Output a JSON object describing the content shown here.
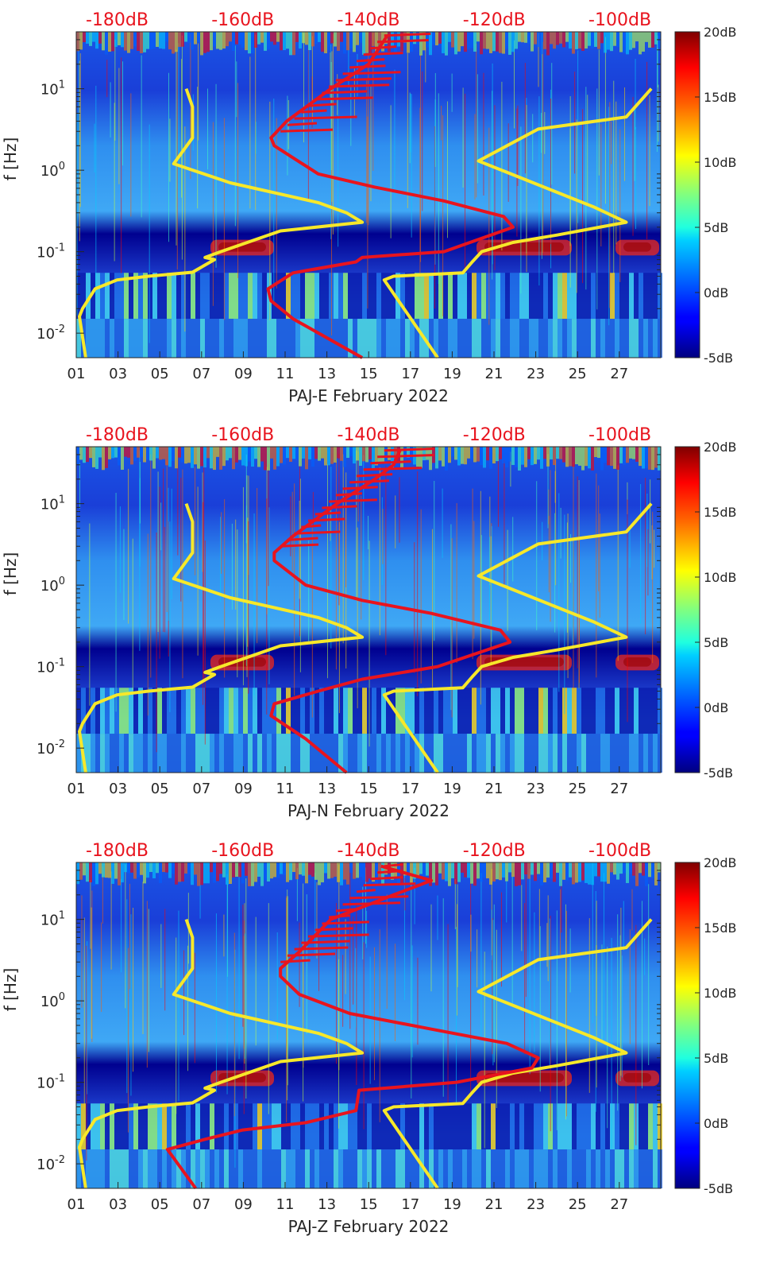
{
  "chart_data": [
    {
      "type": "heatmap",
      "station": "PAJ-E",
      "xlabel": "PAJ-E February 2022",
      "ylabel": "f [Hz]",
      "x_ticks": [
        "01",
        "03",
        "05",
        "07",
        "09",
        "11",
        "13",
        "15",
        "17",
        "19",
        "21",
        "23",
        "25",
        "27"
      ],
      "y_ticks": [
        "10^-2",
        "10^-1",
        "10^0",
        "10^1"
      ],
      "y_scale": "log",
      "ylim": [
        0.005,
        50
      ],
      "top_axis_ticks": [
        "-180dB",
        "-160dB",
        "-140dB",
        "-120dB",
        "-100dB"
      ],
      "colorbar": {
        "ticks": [
          "20dB",
          "15dB",
          "10dB",
          "5dB",
          "0dB",
          "-5dB"
        ],
        "range": [
          -5,
          20
        ],
        "colormap": "jet"
      },
      "series": [
        {
          "name": "",
          "color": "#f7e82a",
          "points": [
            [
              -185,
              0.005
            ],
            [
              -186,
              0.016
            ],
            [
              -185.5,
              0.02
            ],
            [
              -183.5,
              0.035
            ],
            [
              -180,
              0.045
            ],
            [
              -175,
              0.05
            ],
            [
              -168,
              0.056
            ],
            [
              -164.5,
              0.08
            ],
            [
              -166,
              0.085
            ],
            [
              -163.5,
              0.1
            ],
            [
              -154,
              0.18
            ],
            [
              -141,
              0.23
            ],
            [
              -143.5,
              0.3
            ],
            [
              -148,
              0.4
            ],
            [
              -162,
              0.7
            ],
            [
              -171,
              1.2
            ],
            [
              -168,
              2.5
            ],
            [
              -168,
              6
            ],
            [
              -169,
              10
            ]
          ]
        },
        {
          "name": "",
          "color": "#f7e82a",
          "points": [
            [
              -129,
              0.005
            ],
            [
              -137.5,
              0.045
            ],
            [
              -136,
              0.05
            ],
            [
              -125,
              0.055
            ],
            [
              -123.5,
              0.075
            ],
            [
              -122,
              0.1
            ],
            [
              -117,
              0.13
            ],
            [
              -110,
              0.16
            ],
            [
              -99,
              0.23
            ],
            [
              -104,
              0.35
            ],
            [
              -122.5,
              1.3
            ],
            [
              -113,
              3.2
            ],
            [
              -99,
              4.5
            ],
            [
              -95,
              10
            ]
          ]
        },
        {
          "name": "",
          "color": "#e8141e",
          "points": [
            [
              -141,
              0.005
            ],
            [
              -152,
              0.015
            ],
            [
              -155.5,
              0.025
            ],
            [
              -156,
              0.035
            ],
            [
              -152,
              0.055
            ],
            [
              -142,
              0.075
            ],
            [
              -141,
              0.085
            ],
            [
              -128,
              0.1
            ],
            [
              -117,
              0.2
            ],
            [
              -118.5,
              0.27
            ],
            [
              -128,
              0.42
            ],
            [
              -139,
              0.62
            ],
            [
              -148,
              0.9
            ],
            [
              -155,
              2
            ],
            [
              -155.5,
              2.5
            ],
            [
              -153,
              4
            ],
            [
              -146,
              10
            ],
            [
              -140,
              20
            ],
            [
              -138.5,
              30
            ],
            [
              -137,
              45
            ]
          ]
        }
      ]
    },
    {
      "type": "heatmap",
      "station": "PAJ-N",
      "xlabel": "PAJ-N February 2022",
      "ylabel": "f [Hz]",
      "x_ticks": [
        "01",
        "03",
        "05",
        "07",
        "09",
        "11",
        "13",
        "15",
        "17",
        "19",
        "21",
        "23",
        "25",
        "27"
      ],
      "y_ticks": [
        "10^-2",
        "10^-1",
        "10^0",
        "10^1"
      ],
      "y_scale": "log",
      "ylim": [
        0.005,
        50
      ],
      "top_axis_ticks": [
        "-180dB",
        "-160dB",
        "-140dB",
        "-120dB",
        "-100dB"
      ],
      "colorbar": {
        "ticks": [
          "20dB",
          "15dB",
          "10dB",
          "5dB",
          "0dB",
          "-5dB"
        ],
        "range": [
          -5,
          20
        ],
        "colormap": "jet"
      },
      "series": [
        {
          "name": "",
          "color": "#f7e82a",
          "points": [
            [
              -185,
              0.005
            ],
            [
              -186,
              0.016
            ],
            [
              -185.5,
              0.02
            ],
            [
              -183.5,
              0.035
            ],
            [
              -180,
              0.045
            ],
            [
              -175,
              0.05
            ],
            [
              -168,
              0.056
            ],
            [
              -164.5,
              0.08
            ],
            [
              -166,
              0.085
            ],
            [
              -163.5,
              0.1
            ],
            [
              -154,
              0.18
            ],
            [
              -141,
              0.23
            ],
            [
              -143.5,
              0.3
            ],
            [
              -148,
              0.4
            ],
            [
              -162,
              0.7
            ],
            [
              -171,
              1.2
            ],
            [
              -168,
              2.5
            ],
            [
              -168,
              6
            ],
            [
              -169,
              10
            ]
          ]
        },
        {
          "name": "",
          "color": "#f7e82a",
          "points": [
            [
              -129,
              0.005
            ],
            [
              -137.5,
              0.045
            ],
            [
              -136,
              0.05
            ],
            [
              -125,
              0.055
            ],
            [
              -123.5,
              0.075
            ],
            [
              -122,
              0.1
            ],
            [
              -117,
              0.13
            ],
            [
              -110,
              0.16
            ],
            [
              -99,
              0.23
            ],
            [
              -104,
              0.35
            ],
            [
              -122.5,
              1.3
            ],
            [
              -113,
              3.2
            ],
            [
              -99,
              4.5
            ],
            [
              -95,
              10
            ]
          ]
        },
        {
          "name": "",
          "color": "#e8141e",
          "points": [
            [
              -143.5,
              0.005
            ],
            [
              -150,
              0.013
            ],
            [
              -155.5,
              0.025
            ],
            [
              -155,
              0.035
            ],
            [
              -148,
              0.05
            ],
            [
              -141,
              0.07
            ],
            [
              -129,
              0.1
            ],
            [
              -117.5,
              0.2
            ],
            [
              -119,
              0.28
            ],
            [
              -130,
              0.45
            ],
            [
              -141,
              0.65
            ],
            [
              -150,
              1
            ],
            [
              -155,
              2
            ],
            [
              -155,
              2.5
            ],
            [
              -152,
              4
            ],
            [
              -145,
              10
            ],
            [
              -139,
              20
            ],
            [
              -136,
              30
            ],
            [
              -135,
              45
            ]
          ]
        }
      ]
    },
    {
      "type": "heatmap",
      "station": "PAJ-Z",
      "xlabel": "PAJ-Z February 2022",
      "ylabel": "f [Hz]",
      "x_ticks": [
        "01",
        "03",
        "05",
        "07",
        "09",
        "11",
        "13",
        "15",
        "17",
        "19",
        "21",
        "23",
        "25",
        "27"
      ],
      "y_ticks": [
        "10^-2",
        "10^-1",
        "10^0",
        "10^1"
      ],
      "y_scale": "log",
      "ylim": [
        0.005,
        50
      ],
      "top_axis_ticks": [
        "-180dB",
        "-160dB",
        "-140dB",
        "-120dB",
        "-100dB"
      ],
      "colorbar": {
        "ticks": [
          "20dB",
          "15dB",
          "10dB",
          "5dB",
          "0dB",
          "-5dB"
        ],
        "range": [
          -5,
          20
        ],
        "colormap": "jet"
      },
      "series": [
        {
          "name": "",
          "color": "#f7e82a",
          "points": [
            [
              -185,
              0.005
            ],
            [
              -186,
              0.016
            ],
            [
              -185.5,
              0.02
            ],
            [
              -183.5,
              0.035
            ],
            [
              -180,
              0.045
            ],
            [
              -175,
              0.05
            ],
            [
              -168,
              0.056
            ],
            [
              -164.5,
              0.08
            ],
            [
              -166,
              0.085
            ],
            [
              -163.5,
              0.1
            ],
            [
              -154,
              0.18
            ],
            [
              -141,
              0.23
            ],
            [
              -143.5,
              0.3
            ],
            [
              -148,
              0.4
            ],
            [
              -162,
              0.7
            ],
            [
              -171,
              1.2
            ],
            [
              -168,
              2.5
            ],
            [
              -168,
              6
            ],
            [
              -169,
              10
            ]
          ]
        },
        {
          "name": "",
          "color": "#f7e82a",
          "points": [
            [
              -129,
              0.005
            ],
            [
              -137.5,
              0.045
            ],
            [
              -136,
              0.05
            ],
            [
              -125,
              0.055
            ],
            [
              -123.5,
              0.075
            ],
            [
              -122,
              0.1
            ],
            [
              -117,
              0.13
            ],
            [
              -110,
              0.16
            ],
            [
              -99,
              0.23
            ],
            [
              -104,
              0.35
            ],
            [
              -122.5,
              1.3
            ],
            [
              -113,
              3.2
            ],
            [
              -99,
              4.5
            ],
            [
              -95,
              10
            ]
          ]
        },
        {
          "name": "",
          "color": "#e8141e",
          "points": [
            [
              -167.5,
              0.005
            ],
            [
              -172,
              0.015
            ],
            [
              -166,
              0.02
            ],
            [
              -160,
              0.026
            ],
            [
              -150,
              0.032
            ],
            [
              -142,
              0.045
            ],
            [
              -141.5,
              0.08
            ],
            [
              -126,
              0.1
            ],
            [
              -114,
              0.15
            ],
            [
              -113,
              0.2
            ],
            [
              -118,
              0.3
            ],
            [
              -130,
              0.45
            ],
            [
              -143,
              0.7
            ],
            [
              -151,
              1.2
            ],
            [
              -154,
              2
            ],
            [
              -154,
              2.5
            ],
            [
              -151,
              4
            ],
            [
              -146,
              10
            ],
            [
              -136,
              20
            ],
            [
              -130,
              30
            ],
            [
              -138,
              45
            ]
          ]
        }
      ]
    }
  ]
}
